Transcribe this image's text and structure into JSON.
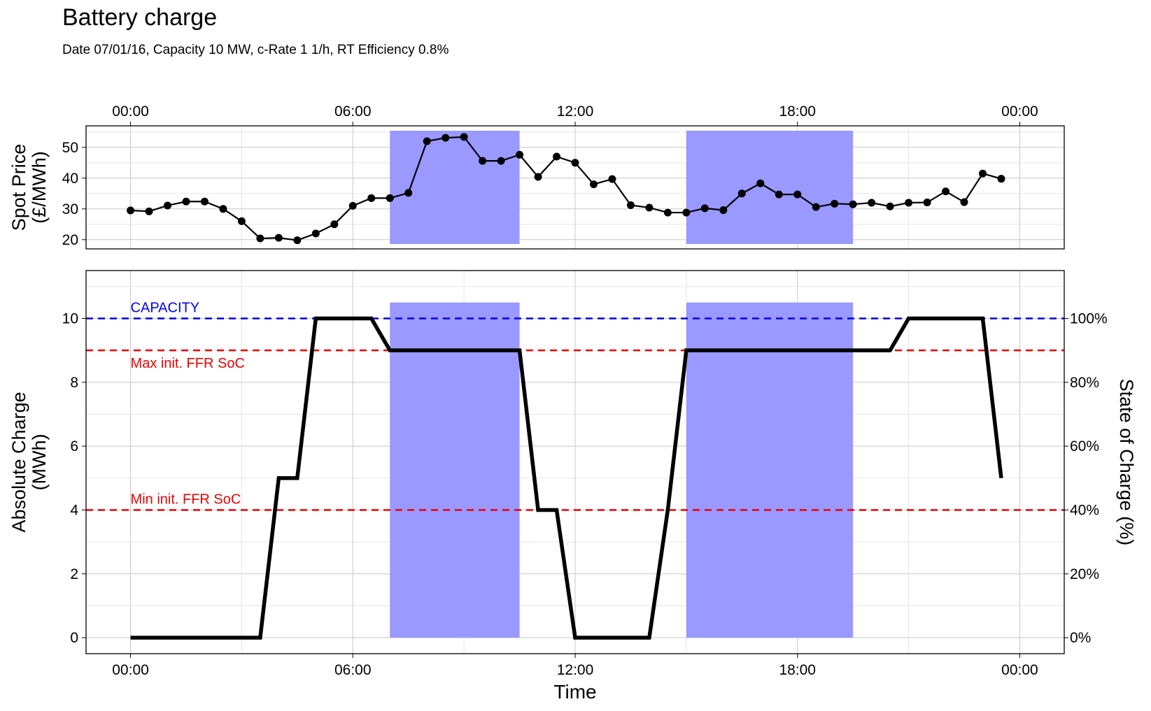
{
  "title": "Battery charge",
  "subtitle": "Date 07/01/16, Capacity 10 MW, c-Rate 1 1/h, RT Efficiency 0.8%",
  "colors": {
    "shade": "#9999ff",
    "capacity_line": "#0000ee",
    "ffr_line": "#ee0000",
    "series": "#000000",
    "grid_major": "#c8c8c8",
    "grid_minor": "#e6e6e6"
  },
  "chart_data": [
    {
      "type": "line",
      "name": "spot-price",
      "ylabel": [
        "Spot Price",
        "(£/MWh)"
      ],
      "ylim": [
        17,
        57
      ],
      "yticks": [
        20,
        30,
        40,
        50
      ],
      "xlim": [
        -1.2,
        25.2
      ],
      "xticks": [
        0,
        6,
        12,
        18,
        24
      ],
      "xtick_labels": [
        "00:00",
        "06:00",
        "12:00",
        "18:00",
        "00:00"
      ],
      "x_axis_position": "top",
      "markers": true,
      "x": [
        0,
        0.5,
        1,
        1.5,
        2,
        2.5,
        3,
        3.5,
        4,
        4.5,
        5,
        5.5,
        6,
        6.5,
        7,
        7.5,
        8,
        8.5,
        9,
        9.5,
        10,
        10.5,
        11,
        11.5,
        12,
        12.5,
        13,
        13.5,
        14,
        14.5,
        15,
        15.5,
        16,
        16.5,
        17,
        17.5,
        18,
        18.5,
        19,
        19.5,
        20,
        20.5,
        21,
        21.5,
        22,
        22.5,
        23,
        23.5
      ],
      "values": [
        29.5,
        29.2,
        31.1,
        32.4,
        32.4,
        30.0,
        26.0,
        20.4,
        20.6,
        19.8,
        22.0,
        25.0,
        31.0,
        33.5,
        33.5,
        35.2,
        52.0,
        53.1,
        53.4,
        45.6,
        45.6,
        47.6,
        40.4,
        47.0,
        45.0,
        38.0,
        39.7,
        31.2,
        30.4,
        28.8,
        28.8,
        30.2,
        29.6,
        35.0,
        38.3,
        34.7,
        34.7,
        30.6,
        31.7,
        31.5,
        32.0,
        30.8,
        32.0,
        32.1,
        35.7,
        32.2,
        41.5,
        39.8
      ],
      "shaded_periods": [
        [
          7,
          10.5
        ],
        [
          15,
          19.5
        ]
      ]
    },
    {
      "type": "line",
      "name": "absolute-charge",
      "xlabel": "Time",
      "ylabel": [
        "Absolute Charge",
        "(MWh)"
      ],
      "y2label": "State of Charge (%)",
      "ylim": [
        -0.5,
        11.5
      ],
      "yticks": [
        0,
        2,
        4,
        6,
        8,
        10
      ],
      "y2ticks": [
        "0%",
        "20%",
        "40%",
        "60%",
        "80%",
        "100%"
      ],
      "xlim": [
        -1.2,
        25.2
      ],
      "xticks": [
        0,
        6,
        12,
        18,
        24
      ],
      "xtick_labels": [
        "00:00",
        "06:00",
        "12:00",
        "18:00",
        "00:00"
      ],
      "x": [
        0,
        3.5,
        4,
        4.5,
        5,
        6.5,
        7,
        10.5,
        11,
        11.5,
        12,
        14,
        14.5,
        15,
        20.5,
        21,
        23,
        23.5
      ],
      "values": [
        0,
        0,
        5,
        5,
        10,
        10,
        9,
        9,
        4,
        4,
        0,
        0,
        4,
        9,
        9,
        10,
        10,
        5
      ],
      "shaded_periods": [
        [
          7,
          10.5
        ],
        [
          15,
          19.5
        ]
      ],
      "reference_lines": [
        {
          "label": "CAPACITY",
          "value": 10,
          "color": "#0000ee",
          "label_position": "above"
        },
        {
          "label": "Max init. FFR SoC",
          "value": 9,
          "color": "#ee0000",
          "label_position": "below"
        },
        {
          "label": "Min init. FFR SoC",
          "value": 4,
          "color": "#ee0000",
          "label_position": "above"
        }
      ]
    }
  ]
}
